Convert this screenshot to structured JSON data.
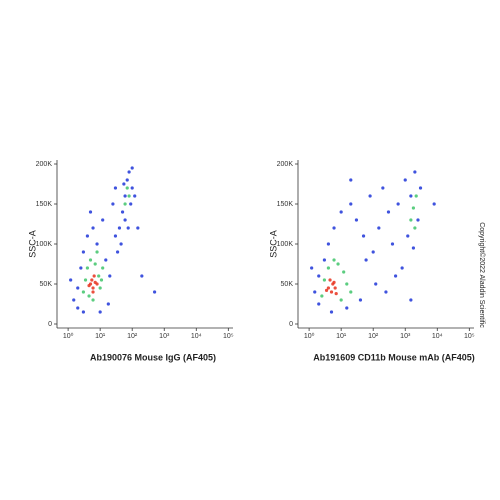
{
  "watermark": "Copyright©2022 Aladdin Scientific",
  "chart_data": [
    {
      "type": "scatter",
      "xlabel": "Ab190076 Mouse IgG (AF405)",
      "ylabel": "SSC-A",
      "xscale": "log",
      "xlim": [
        0.45,
        140000
      ],
      "xticks": [
        {
          "value": 1,
          "label": "10⁰"
        },
        {
          "value": 10,
          "label": "10¹"
        },
        {
          "value": 100,
          "label": "10²"
        },
        {
          "value": 1000,
          "label": "10³"
        },
        {
          "value": 10000,
          "label": "10⁴"
        },
        {
          "value": 100000,
          "label": "10⁵"
        }
      ],
      "ylim": [
        -5000,
        205000
      ],
      "yticks": [
        0,
        {
          "value": 50000,
          "label": "50K"
        },
        {
          "value": 100000,
          "label": "100K"
        },
        {
          "value": 150000,
          "label": "150K"
        },
        {
          "value": 200000,
          "label": "200K"
        }
      ],
      "series": [
        {
          "color": "#1d35d8",
          "x": [
            1.5,
            2,
            2.5,
            3,
            2,
            4,
            6,
            8,
            12,
            15,
            20,
            25,
            30,
            18,
            10,
            40,
            50,
            60,
            70,
            80,
            100,
            90,
            60,
            45,
            120,
            55,
            75,
            35,
            1.2,
            3,
            150,
            200,
            500,
            5,
            100,
            30
          ],
          "y": [
            30000,
            45000,
            70000,
            90000,
            20000,
            110000,
            120000,
            100000,
            130000,
            80000,
            60000,
            150000,
            110000,
            25000,
            15000,
            120000,
            140000,
            160000,
            180000,
            190000,
            170000,
            150000,
            130000,
            100000,
            160000,
            175000,
            120000,
            90000,
            55000,
            15000,
            120000,
            60000,
            40000,
            140000,
            195000,
            170000
          ]
        },
        {
          "color": "#3fc46a",
          "x": [
            3,
            4,
            5,
            7,
            9,
            10,
            3.5,
            6,
            12,
            8,
            60,
            70,
            80,
            4.5,
            11
          ],
          "y": [
            40000,
            70000,
            80000,
            75000,
            60000,
            45000,
            55000,
            30000,
            70000,
            90000,
            150000,
            170000,
            160000,
            35000,
            55000
          ]
        },
        {
          "color": "#e8301c",
          "x": [
            5,
            6,
            5.5,
            7,
            4.5,
            6.5,
            6,
            8
          ],
          "y": [
            50000,
            45000,
            55000,
            52000,
            48000,
            60000,
            40000,
            50000
          ]
        }
      ]
    },
    {
      "type": "scatter",
      "xlabel": "Ab191609 CD11b Mouse mAb (AF405)",
      "ylabel": "SSC-A",
      "xscale": "log",
      "xlim": [
        0.45,
        140000
      ],
      "xticks": [
        {
          "value": 1,
          "label": "10⁰"
        },
        {
          "value": 10,
          "label": "10¹"
        },
        {
          "value": 100,
          "label": "10²"
        },
        {
          "value": 1000,
          "label": "10³"
        },
        {
          "value": 10000,
          "label": "10⁴"
        },
        {
          "value": 100000,
          "label": "10⁵"
        }
      ],
      "ylim": [
        -5000,
        205000
      ],
      "yticks": [
        0,
        {
          "value": 50000,
          "label": "50K"
        },
        {
          "value": 100000,
          "label": "100K"
        },
        {
          "value": 150000,
          "label": "150K"
        },
        {
          "value": 200000,
          "label": "200K"
        }
      ],
      "series": [
        {
          "color": "#1d35d8",
          "x": [
            1.5,
            2,
            3,
            4,
            6,
            10,
            20,
            30,
            50,
            80,
            100,
            150,
            200,
            300,
            400,
            600,
            800,
            1000,
            1200,
            1500,
            2000,
            2500,
            3000,
            1800,
            500,
            250,
            120,
            40,
            15,
            5,
            2,
            1.2,
            20,
            60,
            8000,
            1500
          ],
          "y": [
            40000,
            60000,
            80000,
            100000,
            120000,
            140000,
            150000,
            130000,
            110000,
            160000,
            90000,
            120000,
            170000,
            140000,
            100000,
            150000,
            70000,
            180000,
            110000,
            160000,
            190000,
            130000,
            170000,
            95000,
            60000,
            40000,
            50000,
            30000,
            20000,
            15000,
            25000,
            70000,
            180000,
            80000,
            150000,
            30000
          ]
        },
        {
          "color": "#3fc46a",
          "x": [
            2.5,
            3,
            4,
            8,
            12,
            15,
            20,
            10,
            6,
            1500,
            1800,
            2000,
            2200
          ],
          "y": [
            35000,
            55000,
            70000,
            75000,
            65000,
            50000,
            40000,
            30000,
            80000,
            130000,
            145000,
            120000,
            160000
          ]
        },
        {
          "color": "#e8301c",
          "x": [
            4,
            5,
            5.5,
            4.5,
            6.5,
            7,
            3.5,
            6
          ],
          "y": [
            45000,
            40000,
            50000,
            55000,
            45000,
            38000,
            42000,
            52000
          ]
        }
      ]
    }
  ]
}
